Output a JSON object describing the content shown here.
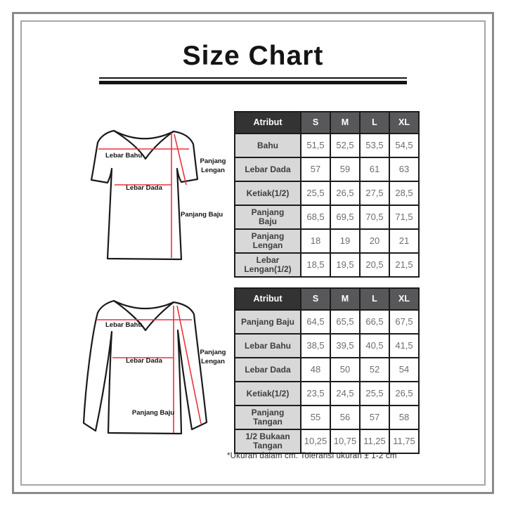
{
  "title": "Size Chart",
  "footnote": "*Ukuran dalam cm. Toleransi ukuran ± 1-2 cm",
  "colors": {
    "accent_red": "#e7333e",
    "outline_black": "#1a1a1a",
    "header_attribute_bg": "#333333",
    "header_size_bg": "#58585a",
    "label_cell_bg": "#d8d8d8",
    "value_text": "#6e6e70",
    "frame_gray": "#8b8b8b"
  },
  "diagrams": [
    {
      "name": "short-sleeve-shirt",
      "labels": {
        "lebar_bahu": "Lebar Bahu",
        "lebar_dada": "Lebar Dada",
        "panjang_lengan_line1": "Panjang",
        "panjang_lengan_line2": "Lengan",
        "panjang_baju": "Panjang Baju"
      }
    },
    {
      "name": "long-sleeve-shirt",
      "labels": {
        "lebar_bahu": "Lebar Bahu",
        "lebar_dada": "Lebar Dada",
        "panjang_lengan_line1": "Panjang",
        "panjang_lengan_line2": "Lengan",
        "panjang_baju": "Panjang Baju"
      }
    }
  ],
  "tables": [
    {
      "headers": [
        "Atribut",
        "S",
        "M",
        "L",
        "XL"
      ],
      "rows": [
        {
          "label": "Bahu",
          "values": [
            "51,5",
            "52,5",
            "53,5",
            "54,5"
          ]
        },
        {
          "label": "Lebar Dada",
          "values": [
            "57",
            "59",
            "61",
            "63"
          ]
        },
        {
          "label": "Ketiak(1/2)",
          "values": [
            "25,5",
            "26,5",
            "27,5",
            "28,5"
          ]
        },
        {
          "label": "Panjang\nBaju",
          "values": [
            "68,5",
            "69,5",
            "70,5",
            "71,5"
          ]
        },
        {
          "label": "Panjang\nLengan",
          "values": [
            "18",
            "19",
            "20",
            "21"
          ]
        },
        {
          "label": "Lebar\nLengan(1/2)",
          "values": [
            "18,5",
            "19,5",
            "20,5",
            "21,5"
          ]
        }
      ]
    },
    {
      "headers": [
        "Atribut",
        "S",
        "M",
        "L",
        "XL"
      ],
      "rows": [
        {
          "label": "Panjang Baju",
          "values": [
            "64,5",
            "65,5",
            "66,5",
            "67,5"
          ]
        },
        {
          "label": "Lebar Bahu",
          "values": [
            "38,5",
            "39,5",
            "40,5",
            "41,5"
          ]
        },
        {
          "label": "Lebar Dada",
          "values": [
            "48",
            "50",
            "52",
            "54"
          ]
        },
        {
          "label": "Ketiak(1/2)",
          "values": [
            "23,5",
            "24,5",
            "25,5",
            "26,5"
          ]
        },
        {
          "label": "Panjang\nTangan",
          "values": [
            "55",
            "56",
            "57",
            "58"
          ]
        },
        {
          "label": "1/2 Bukaan\nTangan",
          "values": [
            "10,25",
            "10,75",
            "11,25",
            "11,75"
          ]
        }
      ]
    }
  ]
}
